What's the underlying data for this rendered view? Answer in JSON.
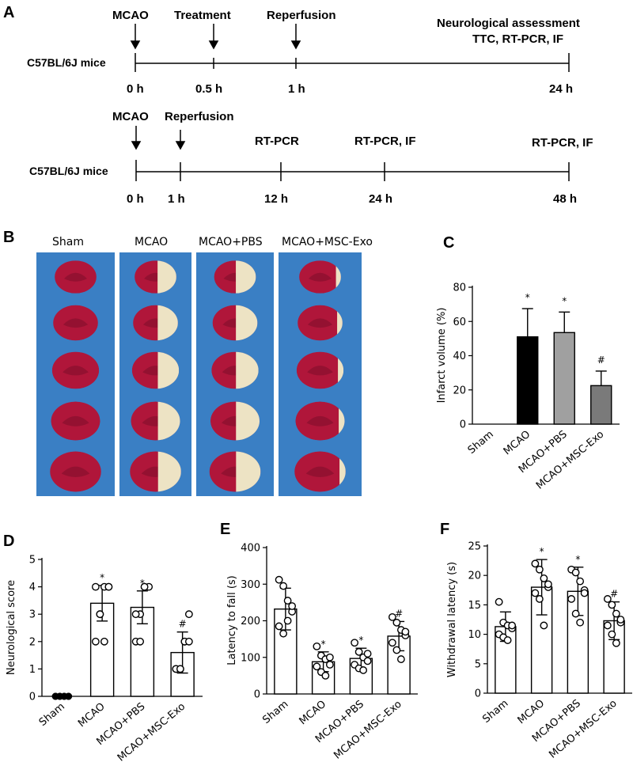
{
  "panel_letters": [
    "A",
    "B",
    "C",
    "D",
    "E",
    "F"
  ],
  "timeline_1": {
    "mice_label": "C57BL/6J mice",
    "events": [
      {
        "label": "MCAO",
        "time": "0  h"
      },
      {
        "label": "Treatment",
        "time": "0.5 h"
      },
      {
        "label": "Reperfusion",
        "time": "1 h"
      }
    ],
    "end_label_line1": "Neurological assessment",
    "end_label_line2": "TTC, RT-PCR, IF",
    "end_time": "24 h"
  },
  "timeline_2": {
    "mice_label": "C57BL/6J mice",
    "events": [
      {
        "label": "MCAO",
        "time": "0 h"
      },
      {
        "label": "Reperfusion",
        "time": "1 h"
      },
      {
        "label": "RT-PCR",
        "time": "12 h"
      },
      {
        "label": "RT-PCR, IF",
        "time": "24 h"
      },
      {
        "label": "RT-PCR, IF",
        "time": "48 h"
      }
    ]
  },
  "photo_panel": {
    "groups": [
      "Sham",
      "MCAO",
      "MCAO+PBS",
      "MCAO+MSC-Exo"
    ],
    "slices_per_group": 5,
    "infarct_fraction": [
      0,
      0.45,
      0.48,
      0.12
    ]
  },
  "colors": {
    "tissue_red": "#b0163a",
    "tissue_dark": "#7d0f2a",
    "infarct_white": "#ede3c4",
    "photo_blue": "#3a7fc4"
  },
  "chart_data": [
    {
      "id": "C",
      "type": "bar",
      "categories": [
        "Sham",
        "MCAO",
        "MCAO+PBS",
        "MCAO+MSC-Exo"
      ],
      "values": [
        0,
        51,
        53.5,
        22.5
      ],
      "errors": [
        0,
        16.5,
        12,
        8.5
      ],
      "significance": [
        "",
        "*",
        "*",
        "#"
      ],
      "bar_fills": [
        "#ffffff",
        "#000000",
        "#a0a0a0",
        "#7a7a7a"
      ],
      "ylabel": "Infarct volume (%)",
      "ylim": [
        0,
        80
      ],
      "yticks": [
        0,
        20,
        40,
        60,
        80
      ]
    },
    {
      "id": "D",
      "type": "bar",
      "categories": [
        "Sham",
        "MCAO",
        "MCAO+PBS",
        "MCAO+MSC-Exo"
      ],
      "values": [
        0,
        3.4,
        3.25,
        1.6
      ],
      "errors": [
        0,
        0.65,
        0.6,
        0.75
      ],
      "significance": [
        "",
        "*",
        "*",
        "#"
      ],
      "points": [
        [
          0,
          0,
          0,
          0,
          0,
          0,
          0,
          0
        ],
        [
          2,
          3,
          4,
          4,
          4,
          3,
          2,
          4
        ],
        [
          2,
          3,
          4,
          4,
          3,
          2,
          4
        ],
        [
          1,
          1,
          2,
          3,
          1,
          1,
          2,
          2
        ]
      ],
      "ylabel": "Neurological score",
      "ylim": [
        0,
        5
      ],
      "yticks": [
        0,
        1,
        2,
        3,
        4,
        5
      ]
    },
    {
      "id": "E",
      "type": "bar",
      "categories": [
        "Sham",
        "MCAO",
        "MCAO+PBS",
        "MCAO+MSC-Exo"
      ],
      "values": [
        232,
        88,
        97,
        158
      ],
      "errors": [
        57,
        27,
        28,
        40
      ],
      "significance": [
        "",
        "*",
        "*",
        "#"
      ],
      "points": [
        [
          312,
          295,
          255,
          225,
          185,
          165,
          200,
          240
        ],
        [
          130,
          105,
          95,
          80,
          75,
          60,
          50,
          100
        ],
        [
          140,
          115,
          100,
          90,
          80,
          70,
          65,
          110
        ],
        [
          210,
          195,
          175,
          160,
          140,
          120,
          95,
          170
        ]
      ],
      "ylabel": "Latency to fall (s)",
      "ylim": [
        0,
        400
      ],
      "yticks": [
        0,
        100,
        200,
        300,
        400
      ]
    },
    {
      "id": "F",
      "type": "bar",
      "categories": [
        "Sham",
        "MCAO",
        "MCAO+PBS",
        "MCAO+MSC-Exo"
      ],
      "values": [
        11.3,
        18,
        17.3,
        12.3
      ],
      "errors": [
        2.5,
        4.7,
        4.1,
        3.2
      ],
      "significance": [
        "",
        "*",
        "*",
        "#"
      ],
      "points": [
        [
          15.5,
          12,
          11.5,
          11,
          10,
          9.5,
          9,
          11.5
        ],
        [
          22,
          21,
          19.5,
          18,
          17,
          16,
          11.5,
          18.5
        ],
        [
          21,
          20.5,
          19,
          17.5,
          16,
          13.5,
          12,
          17
        ],
        [
          16,
          15,
          13.5,
          12,
          11.5,
          10,
          8.5,
          12.5
        ]
      ],
      "ylabel": "Withdrawal latency (s)",
      "ylim": [
        0,
        25
      ],
      "yticks": [
        0,
        5,
        10,
        15,
        20,
        25
      ]
    }
  ]
}
